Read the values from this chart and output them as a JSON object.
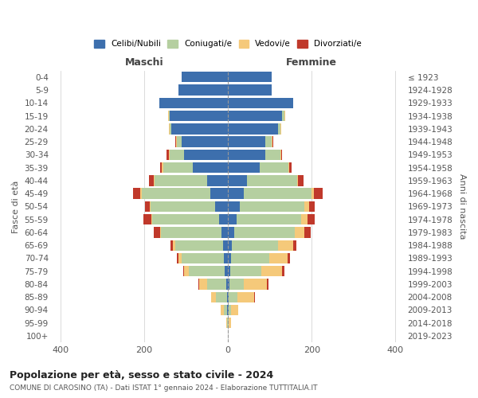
{
  "age_groups": [
    "0-4",
    "5-9",
    "10-14",
    "15-19",
    "20-24",
    "25-29",
    "30-34",
    "35-39",
    "40-44",
    "45-49",
    "50-54",
    "55-59",
    "60-64",
    "65-69",
    "70-74",
    "75-79",
    "80-84",
    "85-89",
    "90-94",
    "95-99",
    "100+"
  ],
  "birth_years": [
    "2019-2023",
    "2014-2018",
    "2009-2013",
    "2004-2008",
    "1999-2003",
    "1994-1998",
    "1989-1993",
    "1984-1988",
    "1979-1983",
    "1974-1978",
    "1969-1973",
    "1964-1968",
    "1959-1963",
    "1954-1958",
    "1949-1953",
    "1944-1948",
    "1939-1943",
    "1934-1938",
    "1929-1933",
    "1924-1928",
    "≤ 1923"
  ],
  "males": {
    "celibi": [
      110,
      118,
      165,
      140,
      135,
      110,
      105,
      85,
      50,
      42,
      30,
      22,
      15,
      12,
      10,
      8,
      5,
      3,
      2,
      0,
      0
    ],
    "coniugati": [
      0,
      0,
      0,
      2,
      5,
      12,
      35,
      70,
      125,
      165,
      155,
      160,
      145,
      115,
      100,
      85,
      45,
      25,
      8,
      2,
      0
    ],
    "vedovi": [
      0,
      0,
      0,
      2,
      2,
      2,
      2,
      3,
      2,
      2,
      2,
      2,
      3,
      5,
      8,
      12,
      18,
      12,
      8,
      2,
      0
    ],
    "divorziati": [
      0,
      0,
      0,
      0,
      0,
      2,
      5,
      5,
      12,
      18,
      12,
      18,
      15,
      5,
      5,
      2,
      2,
      0,
      0,
      0,
      0
    ]
  },
  "females": {
    "nubili": [
      105,
      105,
      155,
      130,
      120,
      90,
      90,
      75,
      45,
      38,
      28,
      20,
      15,
      10,
      8,
      5,
      3,
      2,
      2,
      0,
      0
    ],
    "coniugate": [
      0,
      0,
      0,
      5,
      5,
      15,
      35,
      70,
      120,
      162,
      155,
      155,
      145,
      110,
      90,
      75,
      35,
      20,
      5,
      2,
      0
    ],
    "vedove": [
      0,
      0,
      0,
      2,
      2,
      2,
      2,
      2,
      3,
      5,
      10,
      15,
      22,
      35,
      45,
      50,
      55,
      40,
      18,
      5,
      0
    ],
    "divorziate": [
      0,
      0,
      0,
      0,
      0,
      2,
      3,
      5,
      12,
      22,
      15,
      18,
      15,
      8,
      5,
      5,
      3,
      2,
      0,
      0,
      0
    ]
  },
  "colors": {
    "celibi": "#3d6fad",
    "coniugati": "#b5cfa0",
    "vedovi": "#f5c97a",
    "divorziati": "#c0392b"
  },
  "xlim": [
    -420,
    420
  ],
  "xticks": [
    -400,
    -200,
    0,
    200,
    400
  ],
  "xticklabels": [
    "400",
    "200",
    "0",
    "200",
    "400"
  ],
  "title": "Popolazione per età, sesso e stato civile - 2024",
  "subtitle": "COMUNE DI CAROSINO (TA) - Dati ISTAT 1° gennaio 2024 - Elaborazione TUTTITALIA.IT",
  "ylabel_left": "Fasce di età",
  "ylabel_right": "Anni di nascita",
  "maschi_label": "Maschi",
  "femmine_label": "Femmine",
  "legend_labels": [
    "Celibi/Nubili",
    "Coniugati/e",
    "Vedovi/e",
    "Divorziati/e"
  ],
  "background_color": "#ffffff"
}
